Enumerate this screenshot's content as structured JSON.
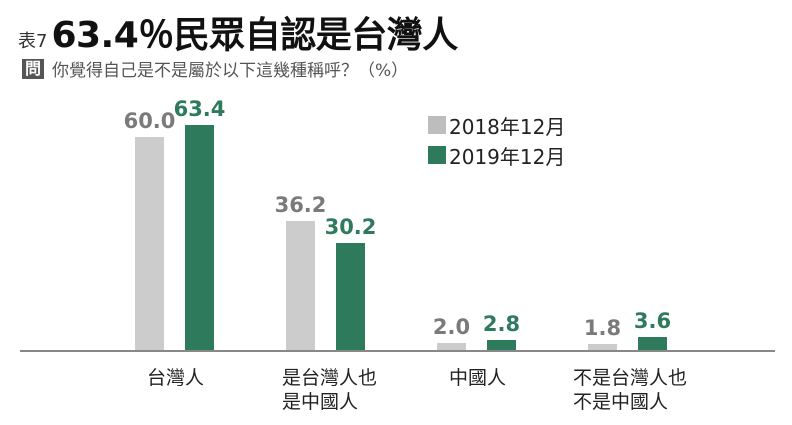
{
  "header": {
    "table_no": "表7",
    "title": "63.4％民眾自認是台灣人",
    "question_badge": "問",
    "question": "你覺得自己是不是屬於以下這幾種稱呼？（%）"
  },
  "legend": [
    {
      "label": "2018年12月",
      "color": "#cccccc"
    },
    {
      "label": "2019年12月",
      "color": "#2e7a5c"
    }
  ],
  "categories": [
    {
      "line1": "台灣人",
      "line2": ""
    },
    {
      "line1": "是台灣人也",
      "line2": "是中國人"
    },
    {
      "line1": "中國人",
      "line2": ""
    },
    {
      "line1": "不是台灣人也",
      "line2": "不是中國人"
    }
  ],
  "values": {
    "s2018": [
      "60.0",
      "36.2",
      "2.0",
      "1.8"
    ],
    "s2019": [
      "63.4",
      "30.2",
      "2.8",
      "3.6"
    ]
  },
  "chart_data": {
    "type": "bar",
    "title": "63.4％民眾自認是台灣人",
    "subtitle": "你覺得自己是不是屬於以下這幾種稱呼？（%）",
    "categories": [
      "台灣人",
      "是台灣人也是中國人",
      "中國人",
      "不是台灣人也不是中國人"
    ],
    "series": [
      {
        "name": "2018年12月",
        "color": "#cccccc",
        "values": [
          60.0,
          36.2,
          2.0,
          1.8
        ]
      },
      {
        "name": "2019年12月",
        "color": "#2e7a5c",
        "values": [
          63.4,
          30.2,
          2.8,
          3.6
        ]
      }
    ],
    "xlabel": "",
    "ylabel": "%",
    "ylim": [
      0,
      70
    ],
    "grid": false,
    "legend_position": "upper-center",
    "data_labels": true
  }
}
